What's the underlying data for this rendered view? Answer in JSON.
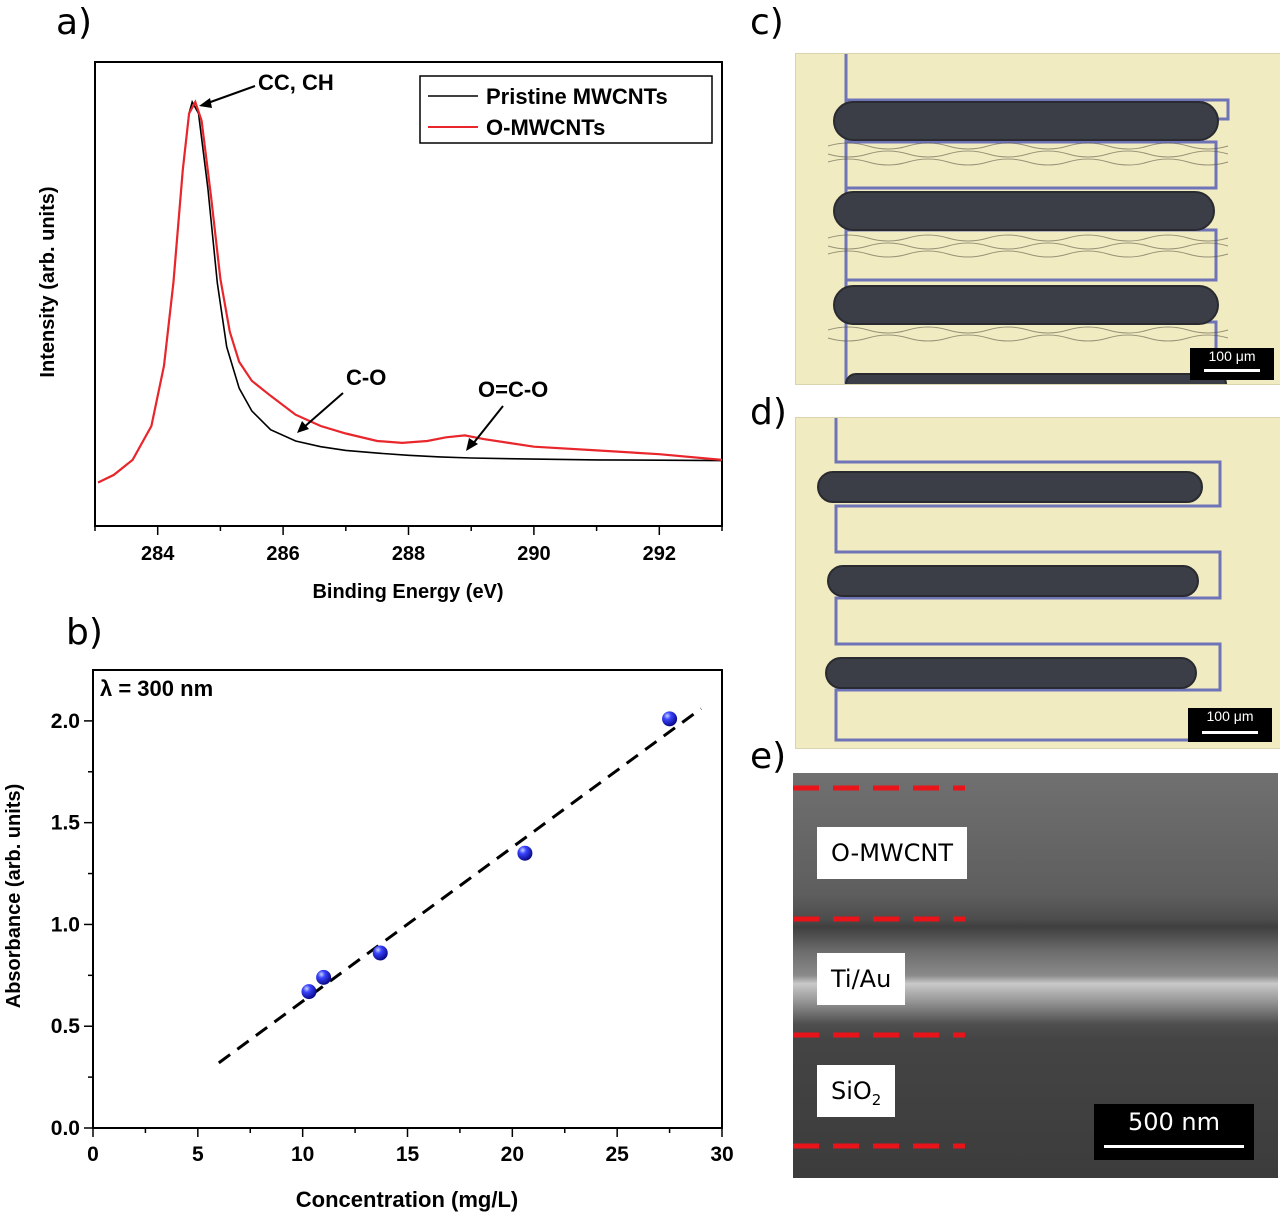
{
  "panels": {
    "a": "a)",
    "b": "b)",
    "c": "c)",
    "d": "d)",
    "e": "e)"
  },
  "colors": {
    "pristine": "#000000",
    "omwcnt": "#e8262b",
    "marker": "#1f1fd9",
    "sem_dash": "#e8141a"
  },
  "chart_data": [
    {
      "type": "line",
      "title": "",
      "xlabel": "Binding Energy (eV)",
      "ylabel": "Intensity (arb. units)",
      "xlim": [
        283.0,
        293.0
      ],
      "ylim": [
        0,
        1.1
      ],
      "xticks": [
        "284",
        "286",
        "288",
        "290",
        "292"
      ],
      "xtick_values": [
        284,
        286,
        288,
        290,
        292
      ],
      "legend": {
        "position": "top-right",
        "entries": [
          "Pristine MWCNTs",
          "O-MWCNTs"
        ]
      },
      "series": [
        {
          "name": "Pristine MWCNTs",
          "x": [
            283.05,
            283.3,
            283.6,
            283.9,
            284.1,
            284.25,
            284.4,
            284.5,
            284.55,
            284.65,
            284.8,
            284.95,
            285.1,
            285.3,
            285.5,
            285.8,
            286.2,
            286.6,
            287.0,
            287.5,
            288.0,
            288.5,
            289.0,
            290.0,
            291.0,
            292.0,
            293.0
          ],
          "y": [
            0.02,
            0.04,
            0.08,
            0.17,
            0.33,
            0.55,
            0.85,
            1.0,
            1.03,
            1.0,
            0.8,
            0.55,
            0.38,
            0.27,
            0.21,
            0.16,
            0.13,
            0.115,
            0.105,
            0.098,
            0.092,
            0.088,
            0.085,
            0.082,
            0.08,
            0.079,
            0.078
          ]
        },
        {
          "name": "O-MWCNTs",
          "x": [
            283.05,
            283.3,
            283.6,
            283.9,
            284.1,
            284.25,
            284.4,
            284.5,
            284.6,
            284.7,
            284.85,
            285.0,
            285.15,
            285.3,
            285.5,
            285.8,
            286.2,
            286.6,
            287.0,
            287.5,
            287.9,
            288.3,
            288.6,
            288.9,
            289.2,
            289.6,
            290.0,
            291.0,
            292.0,
            293.0
          ],
          "y": [
            0.02,
            0.04,
            0.08,
            0.17,
            0.33,
            0.55,
            0.85,
            1.0,
            1.03,
            0.98,
            0.78,
            0.56,
            0.42,
            0.34,
            0.29,
            0.25,
            0.2,
            0.17,
            0.15,
            0.13,
            0.125,
            0.13,
            0.14,
            0.145,
            0.135,
            0.125,
            0.115,
            0.105,
            0.095,
            0.08
          ]
        }
      ],
      "annotations": [
        "CC, CH",
        "C-O",
        "O=C-O"
      ]
    },
    {
      "type": "scatter",
      "title": "",
      "xlabel": "Concentration (mg/L)",
      "ylabel": "Absorbance (arb. units)",
      "xlim": [
        0,
        30
      ],
      "ylim": [
        0,
        2.25
      ],
      "xticks": [
        "0",
        "5",
        "10",
        "15",
        "20",
        "25",
        "30"
      ],
      "xtick_values": [
        0,
        5,
        10,
        15,
        20,
        25,
        30
      ],
      "yticks": [
        "0.0",
        "0.5",
        "1.0",
        "1.5",
        "2.0"
      ],
      "ytick_values": [
        0,
        0.5,
        1.0,
        1.5,
        2.0
      ],
      "annotation": "λ = 300 nm",
      "points": {
        "x": [
          10.3,
          11.0,
          13.7,
          20.6,
          27.5
        ],
        "y": [
          0.67,
          0.74,
          0.86,
          1.35,
          2.01
        ]
      },
      "fit_line": {
        "x": [
          6.0,
          29.0
        ],
        "y": [
          0.32,
          2.06
        ]
      }
    }
  ],
  "micrographs": {
    "c": {
      "scale_label": "100 μm"
    },
    "d": {
      "scale_label": "100 μm"
    }
  },
  "sem": {
    "layers": [
      "O-MWCNT",
      "Ti/Au"
    ],
    "sio2_main": "SiO",
    "sio2_sub": "2",
    "scale_label": "500 nm"
  }
}
